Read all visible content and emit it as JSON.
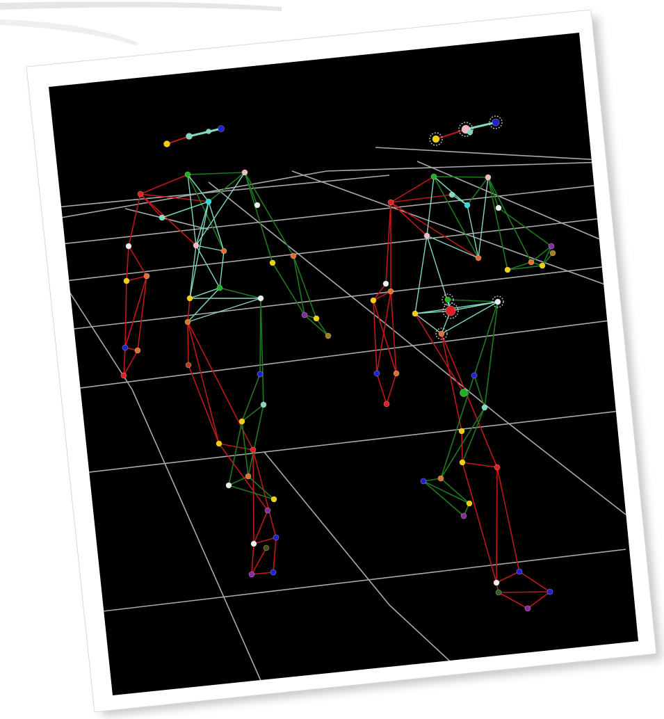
{
  "viewport": {
    "background": "#000000",
    "grid_color": "#c8c8c8",
    "frame_color": "#ffffff"
  },
  "colors": {
    "red_bone": "#c01818",
    "green_bone": "#1f7a1f",
    "cyan_bone": "#7fd8c0",
    "marker_red": "#e02020",
    "marker_yellow": "#f0d000",
    "marker_orange": "#e07030",
    "marker_green": "#20b020",
    "marker_blue": "#2020d0",
    "marker_purple": "#8a2aa0",
    "marker_cyan": "#30d8e0",
    "marker_white": "#e8f0f0",
    "marker_pink": "#f0b8c8"
  },
  "figures": [
    {
      "name": "left-skeleton",
      "has_selection": false
    },
    {
      "name": "right-skeleton",
      "has_selection": true
    }
  ]
}
